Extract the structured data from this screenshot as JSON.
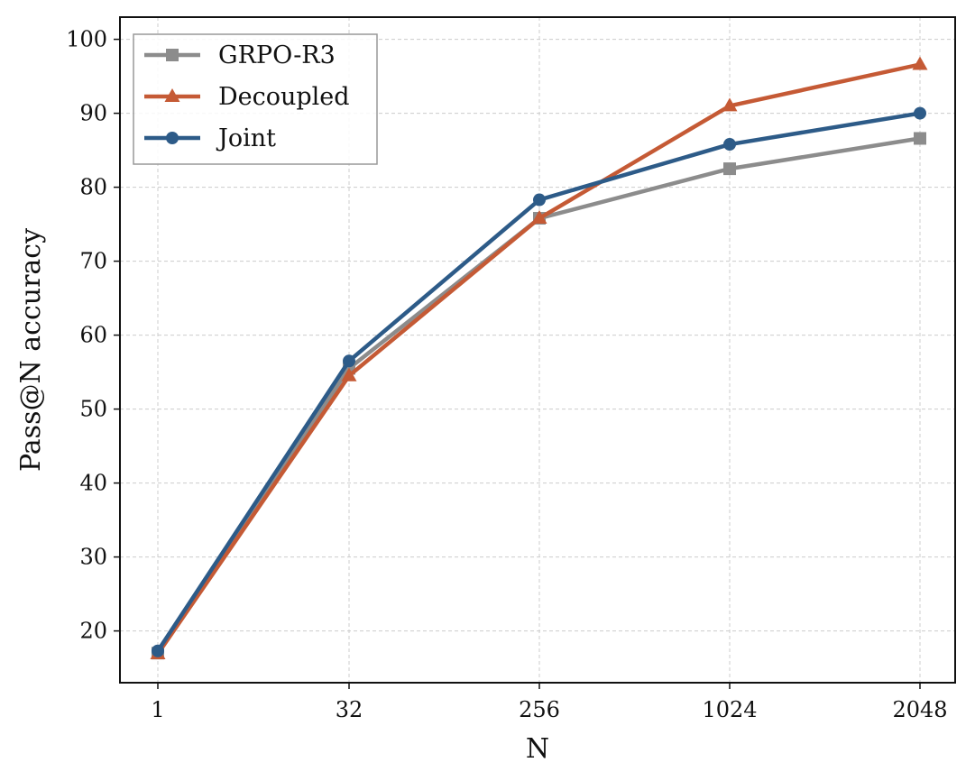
{
  "chart_data": {
    "type": "line",
    "xlabel": "N",
    "ylabel": "Pass@N accuracy",
    "x": [
      "1",
      "32",
      "256",
      "1024",
      "2048"
    ],
    "ylim": [
      13,
      103
    ],
    "yticks": [
      20,
      30,
      40,
      50,
      60,
      70,
      80,
      90,
      100
    ],
    "grid": true,
    "legend_position": "top-left",
    "series": [
      {
        "name": "GRPO-R3",
        "color": "#8c8c8c",
        "marker": "square",
        "values": [
          17.0,
          55.5,
          75.8,
          82.5,
          86.6
        ]
      },
      {
        "name": "Decoupled",
        "color": "#c55a35",
        "marker": "triangle",
        "values": [
          16.9,
          54.5,
          75.8,
          91.0,
          96.6
        ]
      },
      {
        "name": "Joint",
        "color": "#2d5b88",
        "marker": "circle",
        "values": [
          17.3,
          56.5,
          78.3,
          85.8,
          90.0
        ]
      }
    ]
  }
}
